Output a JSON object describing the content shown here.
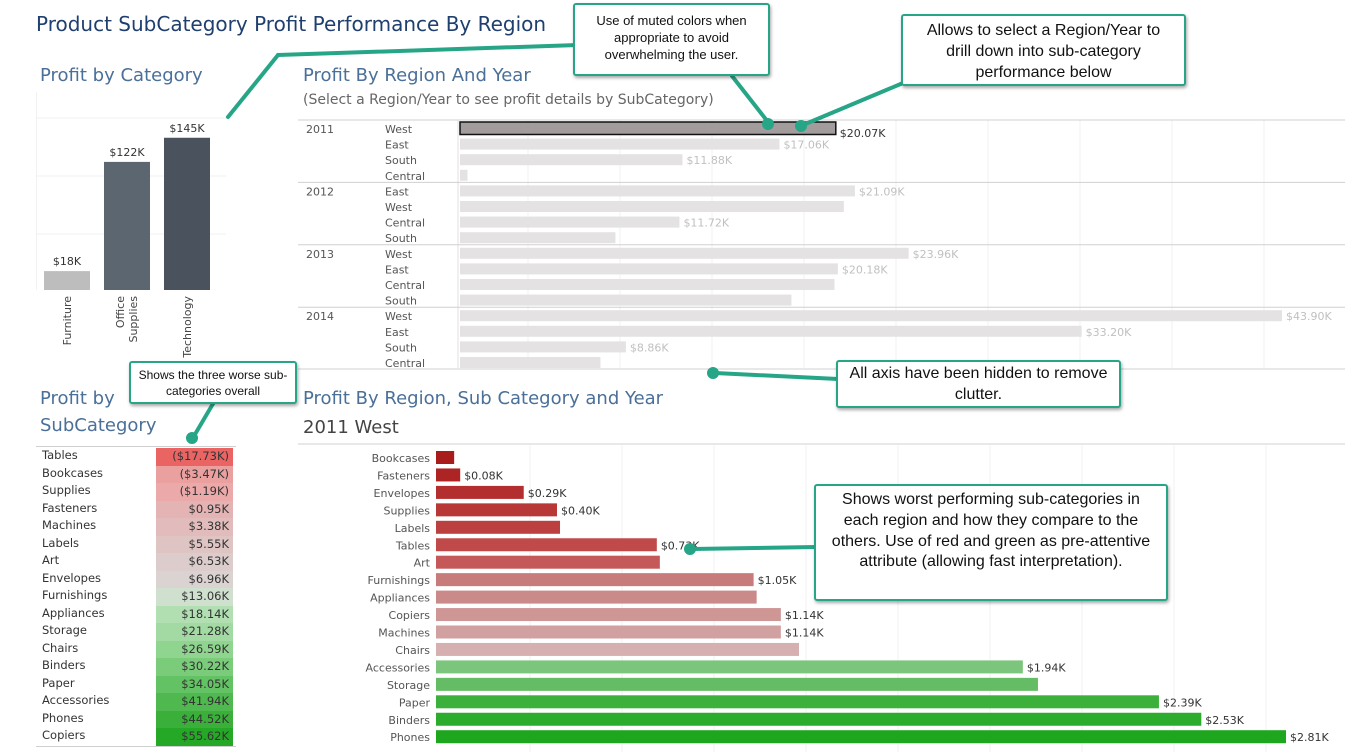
{
  "dashboard_title": "Product SubCategory Profit Performance By Region",
  "category_panel": {
    "title": "Profit by Category"
  },
  "region_year_panel": {
    "title": "Profit By Region And Year",
    "subtitle": "(Select a Region/Year to see profit details by SubCategory)"
  },
  "subcategory_panel": {
    "title_line1": "Profit by",
    "title_line2": "SubCategory"
  },
  "detail_panel": {
    "title": "Profit By Region, Sub Category and Year",
    "selection": "2011 West"
  },
  "callouts": {
    "muted": "Use of muted colors when appropriate  to avoid overwhelming the user.",
    "select": "Allows to select a Region/Year to drill down into sub-category performance  below",
    "axis": "All axis have been hidden to remove clutter.",
    "worst3": "Shows the three worse sub-categories overall",
    "worst_region": "Shows worst performing sub-categories in each region and how they compare to the others. Use of red and green as pre-attentive attribute (allowing fast interpretation)."
  },
  "chart_data": [
    {
      "id": "profit_by_category",
      "type": "bar",
      "title": "Profit by Category",
      "categories": [
        "Furniture",
        "Office Supplies",
        "Technology"
      ],
      "values": [
        18,
        122,
        145
      ],
      "value_labels": [
        "$18K",
        "$122K",
        "$145K"
      ],
      "unit": "K USD",
      "ylim": [
        0,
        160
      ],
      "colors": [
        "#bdbdbd",
        "#5b6670",
        "#4a525e"
      ]
    },
    {
      "id": "profit_by_region_year",
      "type": "bar",
      "orientation": "horizontal",
      "title": "Profit By Region And Year",
      "xlim": [
        0,
        45
      ],
      "groups": [
        {
          "year": "2011",
          "rows": [
            {
              "region": "West",
              "value": 20.07,
              "label": "$20.07K",
              "selected": true
            },
            {
              "region": "East",
              "value": 17.06,
              "label": "$17.06K"
            },
            {
              "region": "South",
              "value": 11.88,
              "label": "$11.88K"
            },
            {
              "region": "Central",
              "value": 0.4,
              "label": ""
            }
          ]
        },
        {
          "year": "2012",
          "rows": [
            {
              "region": "East",
              "value": 21.09,
              "label": "$21.09K"
            },
            {
              "region": "West",
              "value": 20.5,
              "label": ""
            },
            {
              "region": "Central",
              "value": 11.72,
              "label": "$11.72K"
            },
            {
              "region": "South",
              "value": 8.3,
              "label": ""
            }
          ]
        },
        {
          "year": "2013",
          "rows": [
            {
              "region": "West",
              "value": 23.96,
              "label": "$23.96K"
            },
            {
              "region": "East",
              "value": 20.18,
              "label": "$20.18K"
            },
            {
              "region": "Central",
              "value": 20.0,
              "label": ""
            },
            {
              "region": "South",
              "value": 17.7,
              "label": ""
            }
          ]
        },
        {
          "year": "2014",
          "rows": [
            {
              "region": "West",
              "value": 43.9,
              "label": "$43.90K"
            },
            {
              "region": "East",
              "value": 33.2,
              "label": "$33.20K"
            },
            {
              "region": "South",
              "value": 8.86,
              "label": "$8.86K"
            },
            {
              "region": "Central",
              "value": 7.5,
              "label": ""
            }
          ]
        }
      ]
    },
    {
      "id": "profit_by_subcategory",
      "type": "table",
      "title": "Profit by SubCategory",
      "rows": [
        {
          "name": "Tables",
          "label": "($17.73K)",
          "value": -17.73
        },
        {
          "name": "Bookcases",
          "label": "($3.47K)",
          "value": -3.47
        },
        {
          "name": "Supplies",
          "label": "($1.19K)",
          "value": -1.19
        },
        {
          "name": "Fasteners",
          "label": "$0.95K",
          "value": 0.95
        },
        {
          "name": "Machines",
          "label": "$3.38K",
          "value": 3.38
        },
        {
          "name": "Labels",
          "label": "$5.55K",
          "value": 5.55
        },
        {
          "name": "Art",
          "label": "$6.53K",
          "value": 6.53
        },
        {
          "name": "Envelopes",
          "label": "$6.96K",
          "value": 6.96
        },
        {
          "name": "Furnishings",
          "label": "$13.06K",
          "value": 13.06
        },
        {
          "name": "Appliances",
          "label": "$18.14K",
          "value": 18.14
        },
        {
          "name": "Storage",
          "label": "$21.28K",
          "value": 21.28
        },
        {
          "name": "Chairs",
          "label": "$26.59K",
          "value": 26.59
        },
        {
          "name": "Binders",
          "label": "$30.22K",
          "value": 30.22
        },
        {
          "name": "Paper",
          "label": "$34.05K",
          "value": 34.05
        },
        {
          "name": "Accessories",
          "label": "$41.94K",
          "value": 41.94
        },
        {
          "name": "Phones",
          "label": "$44.52K",
          "value": 44.52
        },
        {
          "name": "Copiers",
          "label": "$55.62K",
          "value": 55.62
        }
      ],
      "colors": [
        "#ea6464",
        "#eba0a0",
        "#eca9a9",
        "#e4b4b4",
        "#e2bcbc",
        "#dfc4c4",
        "#dccccc",
        "#dbd2d2",
        "#cfe0cf",
        "#b2dfb2",
        "#a3daa3",
        "#8fd48f",
        "#7acb7a",
        "#63c263",
        "#4fb84f",
        "#3ab03a",
        "#25a825"
      ]
    },
    {
      "id": "profit_by_region_subcategory_year",
      "type": "bar",
      "orientation": "horizontal",
      "title": "Profit By Region, Sub Category and Year",
      "xlim": [
        0,
        2.85
      ],
      "rows": [
        {
          "name": "Bookcases",
          "value": 0.06,
          "label": ""
        },
        {
          "name": "Fasteners",
          "value": 0.08,
          "label": "$0.08K"
        },
        {
          "name": "Envelopes",
          "value": 0.29,
          "label": "$0.29K"
        },
        {
          "name": "Supplies",
          "value": 0.4,
          "label": "$0.40K"
        },
        {
          "name": "Labels",
          "value": 0.41,
          "label": ""
        },
        {
          "name": "Tables",
          "value": 0.73,
          "label": "$0.73K"
        },
        {
          "name": "Art",
          "value": 0.74,
          "label": ""
        },
        {
          "name": "Furnishings",
          "value": 1.05,
          "label": "$1.05K"
        },
        {
          "name": "Appliances",
          "value": 1.06,
          "label": ""
        },
        {
          "name": "Copiers",
          "value": 1.14,
          "label": "$1.14K"
        },
        {
          "name": "Machines",
          "value": 1.14,
          "label": "$1.14K"
        },
        {
          "name": "Chairs",
          "value": 1.2,
          "label": ""
        },
        {
          "name": "Accessories",
          "value": 1.94,
          "label": "$1.94K"
        },
        {
          "name": "Storage",
          "value": 1.99,
          "label": ""
        },
        {
          "name": "Paper",
          "value": 2.39,
          "label": "$2.39K"
        },
        {
          "name": "Binders",
          "value": 2.53,
          "label": "$2.53K"
        },
        {
          "name": "Phones",
          "value": 2.81,
          "label": "$2.81K"
        }
      ],
      "colors": [
        "#a81c1c",
        "#ad2424",
        "#b32e2e",
        "#b83838",
        "#bc4040",
        "#c04a4a",
        "#c55858",
        "#c77b7b",
        "#cb8a8a",
        "#cf9696",
        "#d1a0a0",
        "#d6b0b0",
        "#7cc57c",
        "#64bc64",
        "#3bb03b",
        "#2cac2c",
        "#1ea61e"
      ]
    }
  ]
}
